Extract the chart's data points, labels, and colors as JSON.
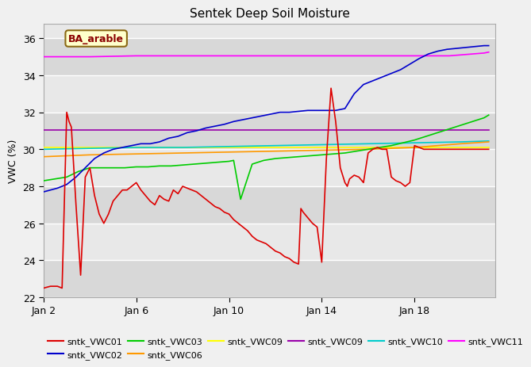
{
  "title": "Sentek Deep Soil Moisture",
  "ylabel": "VWC (%)",
  "annotation": "BA_arable",
  "ylim": [
    22,
    36.8
  ],
  "ytick_positions": [
    22,
    24,
    26,
    28,
    30,
    32,
    34,
    36
  ],
  "xtick_positions": [
    0,
    4,
    8,
    12,
    16
  ],
  "xtick_labels": [
    "Jan 2",
    "Jan 6",
    "Jan 10",
    "Jan 14",
    "Jan 18"
  ],
  "xlim": [
    0,
    19.5
  ],
  "fig_bg": "#f0f0f0",
  "plot_bg": "#e8e8e8",
  "grid_color": "#ffffff",
  "series": {
    "sntk_VWC01": {
      "color": "#dd0000",
      "x": [
        0,
        0.3,
        0.6,
        0.8,
        1.0,
        1.1,
        1.2,
        1.4,
        1.6,
        1.8,
        2.0,
        2.2,
        2.4,
        2.6,
        2.8,
        3.0,
        3.2,
        3.4,
        3.6,
        3.8,
        4.0,
        4.2,
        4.4,
        4.6,
        4.8,
        5.0,
        5.2,
        5.4,
        5.6,
        5.8,
        6.0,
        6.2,
        6.4,
        6.6,
        6.8,
        7.0,
        7.2,
        7.4,
        7.6,
        7.8,
        8.0,
        8.2,
        8.4,
        8.6,
        8.8,
        9.0,
        9.2,
        9.4,
        9.6,
        9.8,
        10.0,
        10.2,
        10.4,
        10.6,
        10.8,
        11.0,
        11.1,
        11.2,
        11.4,
        11.6,
        11.8,
        12.0,
        12.2,
        12.4,
        12.6,
        12.8,
        13.0,
        13.1,
        13.2,
        13.4,
        13.6,
        13.8,
        14.0,
        14.2,
        14.4,
        14.6,
        14.8,
        15.0,
        15.2,
        15.4,
        15.6,
        15.8,
        16.0,
        16.2,
        16.4,
        16.6,
        16.8,
        17.0,
        17.2,
        17.4,
        17.6,
        17.8,
        18.0,
        18.2,
        18.4,
        18.6,
        18.8,
        19.0,
        19.2
      ],
      "y": [
        22.5,
        22.6,
        22.6,
        22.5,
        32.0,
        31.5,
        31.2,
        27.0,
        23.2,
        28.5,
        29.0,
        27.5,
        26.5,
        26.0,
        26.5,
        27.2,
        27.5,
        27.8,
        27.8,
        28.0,
        28.2,
        27.8,
        27.5,
        27.2,
        27.0,
        27.5,
        27.3,
        27.2,
        27.8,
        27.6,
        28.0,
        27.9,
        27.8,
        27.7,
        27.5,
        27.3,
        27.1,
        26.9,
        26.8,
        26.6,
        26.5,
        26.2,
        26.0,
        25.8,
        25.6,
        25.3,
        25.1,
        25.0,
        24.9,
        24.7,
        24.5,
        24.4,
        24.2,
        24.1,
        23.9,
        23.8,
        26.8,
        26.6,
        26.3,
        26.0,
        25.8,
        23.9,
        29.5,
        33.3,
        31.5,
        29.0,
        28.2,
        28.0,
        28.4,
        28.6,
        28.5,
        28.2,
        29.8,
        30.0,
        30.1,
        30.0,
        30.0,
        28.5,
        28.3,
        28.2,
        28.0,
        28.2,
        30.2,
        30.1,
        30.0,
        30.0,
        30.0,
        30.0,
        30.0,
        30.0,
        30.0,
        30.0,
        30.0,
        30.0,
        30.0,
        30.0,
        30.0,
        30.0,
        30.0
      ]
    },
    "sntk_VWC02": {
      "color": "#0000cc",
      "x": [
        0,
        0.3,
        0.6,
        1.0,
        1.4,
        1.8,
        2.2,
        2.6,
        3.0,
        3.4,
        3.8,
        4.2,
        4.6,
        5.0,
        5.4,
        5.8,
        6.2,
        6.6,
        7.0,
        7.4,
        7.8,
        8.2,
        8.6,
        9.0,
        9.4,
        9.8,
        10.2,
        10.6,
        11.0,
        11.4,
        11.8,
        12.2,
        12.6,
        13.0,
        13.4,
        13.8,
        14.2,
        14.6,
        15.0,
        15.4,
        15.8,
        16.2,
        16.6,
        17.0,
        17.4,
        17.8,
        18.2,
        18.6,
        19.0,
        19.2
      ],
      "y": [
        27.7,
        27.8,
        27.9,
        28.1,
        28.5,
        29.0,
        29.5,
        29.8,
        30.0,
        30.1,
        30.2,
        30.3,
        30.3,
        30.4,
        30.6,
        30.7,
        30.9,
        31.0,
        31.15,
        31.25,
        31.35,
        31.5,
        31.6,
        31.7,
        31.8,
        31.9,
        32.0,
        32.0,
        32.05,
        32.1,
        32.1,
        32.1,
        32.1,
        32.2,
        33.0,
        33.5,
        33.7,
        33.9,
        34.1,
        34.3,
        34.6,
        34.9,
        35.15,
        35.3,
        35.4,
        35.45,
        35.5,
        35.55,
        35.6,
        35.6
      ]
    },
    "sntk_VWC03": {
      "color": "#00cc00",
      "x": [
        0,
        0.5,
        1.0,
        1.5,
        2.0,
        2.5,
        3.0,
        3.5,
        4.0,
        4.5,
        5.0,
        5.5,
        6.0,
        6.5,
        7.0,
        7.5,
        8.0,
        8.2,
        8.5,
        9.0,
        9.5,
        10.0,
        10.5,
        11.0,
        11.5,
        12.0,
        12.5,
        13.0,
        13.5,
        14.0,
        14.5,
        15.0,
        15.5,
        16.0,
        16.5,
        17.0,
        17.5,
        18.0,
        18.5,
        19.0,
        19.2
      ],
      "y": [
        28.3,
        28.4,
        28.5,
        28.8,
        29.0,
        29.0,
        29.0,
        29.0,
        29.05,
        29.05,
        29.1,
        29.1,
        29.15,
        29.2,
        29.25,
        29.3,
        29.35,
        29.4,
        27.3,
        29.2,
        29.4,
        29.5,
        29.55,
        29.6,
        29.65,
        29.7,
        29.75,
        29.8,
        29.9,
        30.0,
        30.1,
        30.2,
        30.35,
        30.5,
        30.7,
        30.9,
        31.1,
        31.3,
        31.5,
        31.7,
        31.85
      ]
    },
    "sntk_VWC06": {
      "color": "#ff9900",
      "x": [
        0,
        2,
        4,
        6,
        8,
        10,
        12,
        14,
        16,
        18,
        19.2
      ],
      "y": [
        29.6,
        29.7,
        29.75,
        29.8,
        29.85,
        29.9,
        29.95,
        30.0,
        30.1,
        30.3,
        30.4
      ]
    },
    "sntk_VWC09_yellow": {
      "color": "#ffff00",
      "x": [
        0,
        19.2
      ],
      "y": [
        30.1,
        30.1
      ]
    },
    "sntk_VWC09_purple": {
      "color": "#9900aa",
      "x": [
        0,
        19.2
      ],
      "y": [
        31.05,
        31.05
      ]
    },
    "sntk_VWC10": {
      "color": "#00cccc",
      "x": [
        0,
        2,
        4,
        6,
        8,
        10,
        12,
        14,
        16,
        18,
        19.2
      ],
      "y": [
        30.0,
        30.05,
        30.1,
        30.1,
        30.15,
        30.2,
        30.25,
        30.3,
        30.35,
        30.4,
        30.45
      ]
    },
    "sntk_VWC11": {
      "color": "#ff00ff",
      "x": [
        0,
        2,
        4,
        6,
        8,
        10,
        12,
        14,
        16,
        17.5,
        18.0,
        18.5,
        19.0,
        19.2
      ],
      "y": [
        35.0,
        35.0,
        35.05,
        35.05,
        35.05,
        35.05,
        35.05,
        35.05,
        35.05,
        35.05,
        35.1,
        35.15,
        35.2,
        35.25
      ]
    }
  },
  "legend": [
    {
      "color": "#dd0000",
      "label": "sntk_VWC01"
    },
    {
      "color": "#0000cc",
      "label": "sntk_VWC02"
    },
    {
      "color": "#00cc00",
      "label": "sntk_VWC03"
    },
    {
      "color": "#ff9900",
      "label": "sntk_VWC06"
    },
    {
      "color": "#ffff00",
      "label": "sntk_VWC09"
    },
    {
      "color": "#9900aa",
      "label": "sntk_VWC09"
    },
    {
      "color": "#00cccc",
      "label": "sntk_VWC10"
    },
    {
      "color": "#ff00ff",
      "label": "sntk_VWC11"
    }
  ]
}
